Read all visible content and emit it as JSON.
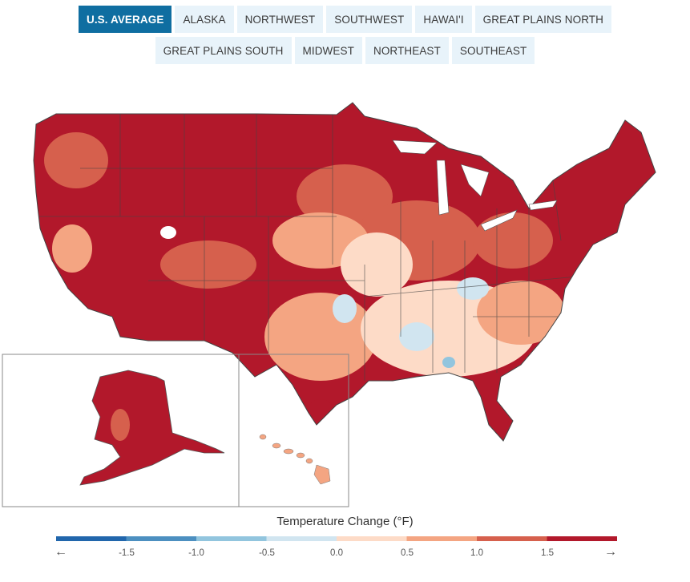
{
  "tabs_row1": [
    {
      "label": "U.S. AVERAGE",
      "active": true
    },
    {
      "label": "ALASKA"
    },
    {
      "label": "NORTHWEST"
    },
    {
      "label": "SOUTHWEST"
    },
    {
      "label": "HAWAI'I"
    },
    {
      "label": "GREAT PLAINS NORTH"
    }
  ],
  "tabs_row2": [
    {
      "label": "GREAT PLAINS SOUTH"
    },
    {
      "label": "MIDWEST"
    },
    {
      "label": "NORTHEAST"
    },
    {
      "label": "SOUTHEAST"
    }
  ],
  "legend": {
    "title": "Temperature Change (°F)",
    "ticks": [
      "-1.5",
      "-1.0",
      "-0.5",
      "0.0",
      "0.5",
      "1.0",
      "1.5"
    ],
    "colors": [
      "#2166ac",
      "#4c8fc0",
      "#92c5de",
      "#d1e5f0",
      "#fddbc7",
      "#f4a582",
      "#d6604d",
      "#b2182b"
    ],
    "left_arrow": "←",
    "right_arrow": "→"
  },
  "map_colors": {
    "hot": "#b2182b",
    "warm": "#d6604d",
    "mild": "#f4a582",
    "light": "#fddbc7",
    "cool": "#d1e5f0",
    "cooler": "#92c5de",
    "border": "#444444"
  }
}
